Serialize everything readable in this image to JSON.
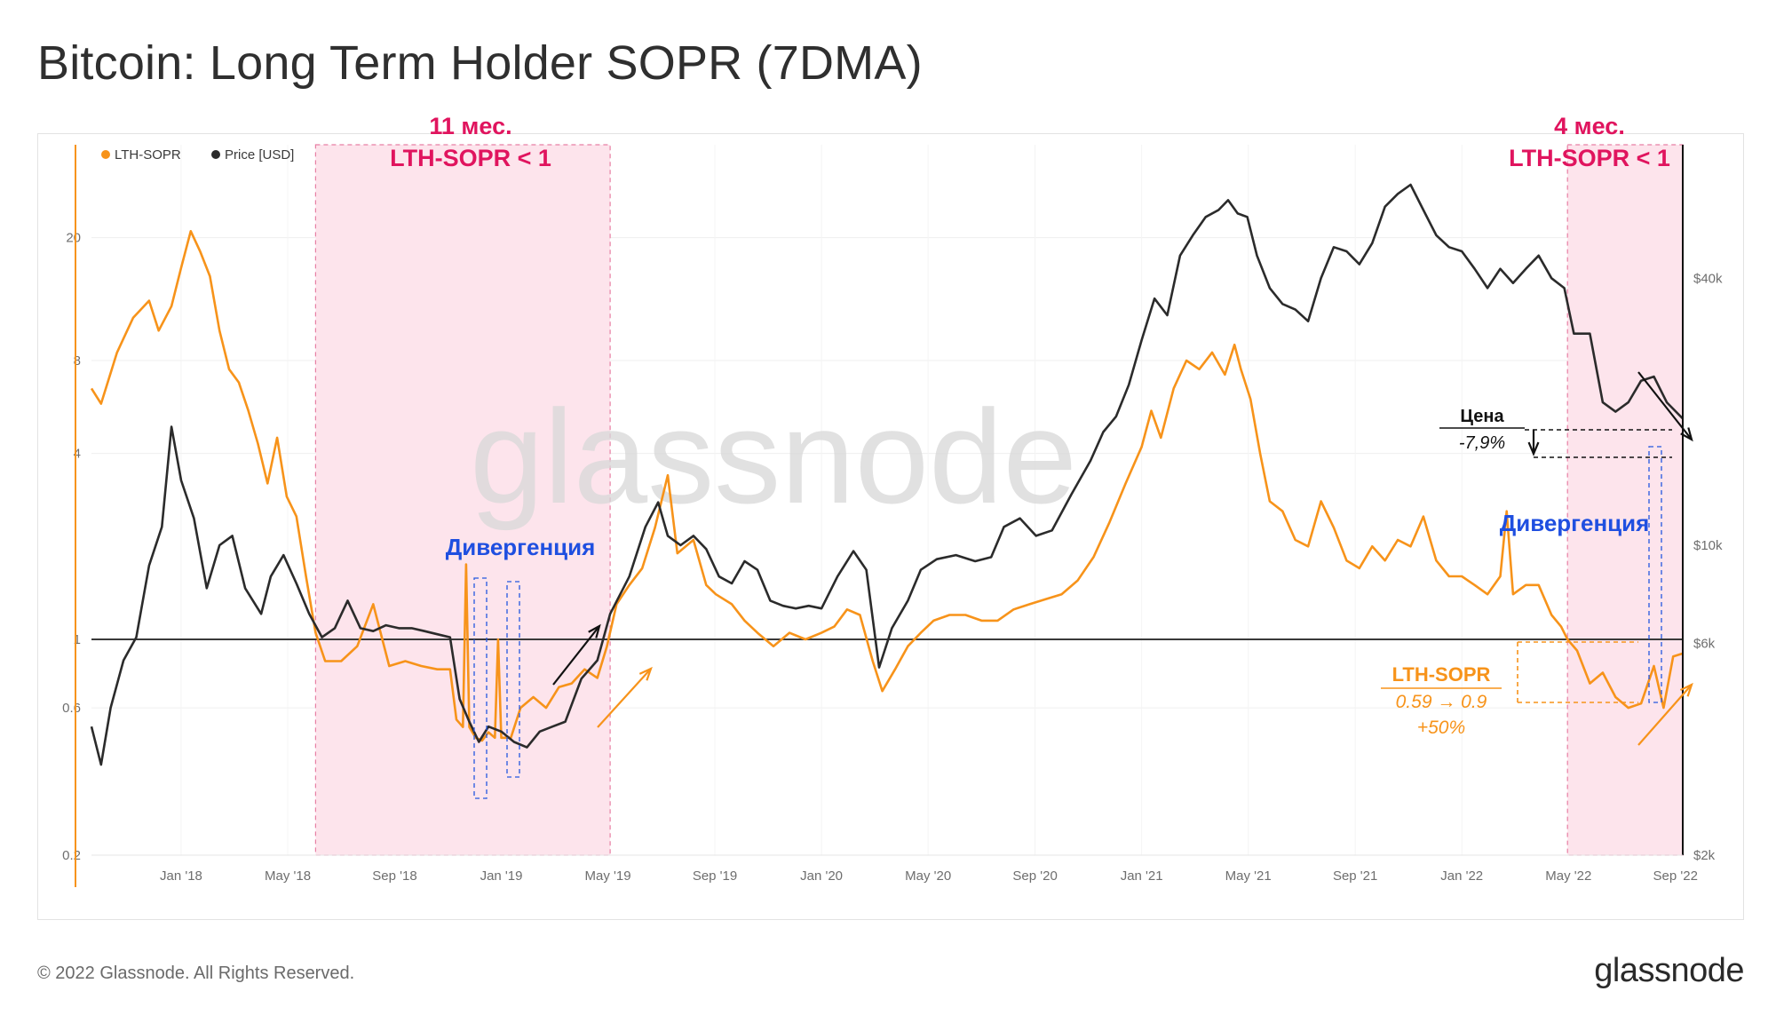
{
  "title": "Bitcoin: Long Term Holder SOPR (7DMA)",
  "footer": {
    "copyright": "© 2022 Glassnode. All Rights Reserved.",
    "logo": "glassnode"
  },
  "watermark": "glassnode",
  "colors": {
    "sopr": "#f7931a",
    "price": "#2b2b2b",
    "shade": "#fde4ec",
    "shade_border": "#e77fa4",
    "red_text": "#e0145e",
    "blue_text": "#1f4fe0",
    "ref_line": "#3a3a3a"
  },
  "annotations": {
    "period1_top": "11 мес.",
    "period1_bottom": "LTH-SOPR < 1",
    "period2_top": "4 мес.",
    "period2_bottom": "LTH-SOPR < 1",
    "divergence1": "Дивергенция",
    "divergence2": "Дивергенция",
    "price_label": "Цена",
    "price_change": "-7,9%",
    "sopr_label": "LTH-SOPR",
    "sopr_change": "0.59 → 0.9",
    "sopr_pct": "+50%"
  },
  "chart_data": {
    "type": "line",
    "title": "Bitcoin: Long Term Holder SOPR (7DMA)",
    "legend": [
      "LTH-SOPR",
      "Price [USD]"
    ],
    "legend_position": "top-left",
    "x_range": [
      "2017-09-20",
      "2022-09-30"
    ],
    "x_ticks": [
      "Jan '18",
      "May '18",
      "Sep '18",
      "Jan '19",
      "May '19",
      "Sep '19",
      "Jan '20",
      "May '20",
      "Sep '20",
      "Jan '21",
      "May '21",
      "Sep '21",
      "Jan '22",
      "May '22",
      "Sep '22"
    ],
    "x_tick_dates": [
      2018.0,
      2018.333,
      2018.667,
      2019.0,
      2019.333,
      2019.667,
      2020.0,
      2020.333,
      2020.667,
      2021.0,
      2021.333,
      2021.667,
      2022.0,
      2022.333,
      2022.667
    ],
    "y_left": {
      "scale": "log",
      "range": [
        0.2,
        40
      ],
      "ticks": [
        0.2,
        0.6,
        1,
        4,
        8,
        20
      ],
      "tick_labels": [
        "0.2",
        "0.6",
        "1",
        "4",
        "8",
        "20"
      ]
    },
    "y_right": {
      "scale": "log",
      "range": [
        2000,
        80000
      ],
      "ticks": [
        2000,
        6000,
        10000,
        40000
      ],
      "tick_labels": [
        "$2k",
        "$6k",
        "$10k",
        "$40k"
      ]
    },
    "reference_line": 1,
    "shaded_periods": [
      {
        "start": 2018.42,
        "end": 2019.34
      },
      {
        "start": 2022.33,
        "end": 2022.69
      }
    ],
    "series": [
      {
        "name": "LTH-SOPR",
        "axis": "left",
        "points": [
          [
            2017.72,
            6.5
          ],
          [
            2017.75,
            5.8
          ],
          [
            2017.8,
            8.5
          ],
          [
            2017.85,
            11
          ],
          [
            2017.9,
            12.5
          ],
          [
            2017.93,
            10
          ],
          [
            2017.97,
            12
          ],
          [
            2018.0,
            16
          ],
          [
            2018.03,
            21
          ],
          [
            2018.06,
            18
          ],
          [
            2018.09,
            15
          ],
          [
            2018.12,
            10
          ],
          [
            2018.15,
            7.5
          ],
          [
            2018.18,
            6.8
          ],
          [
            2018.21,
            5.5
          ],
          [
            2018.24,
            4.3
          ],
          [
            2018.27,
            3.2
          ],
          [
            2018.3,
            4.5
          ],
          [
            2018.33,
            2.9
          ],
          [
            2018.36,
            2.5
          ],
          [
            2018.39,
            1.6
          ],
          [
            2018.42,
            1.05
          ],
          [
            2018.45,
            0.85
          ],
          [
            2018.5,
            0.85
          ],
          [
            2018.55,
            0.95
          ],
          [
            2018.6,
            1.3
          ],
          [
            2018.65,
            0.82
          ],
          [
            2018.7,
            0.85
          ],
          [
            2018.75,
            0.82
          ],
          [
            2018.8,
            0.8
          ],
          [
            2018.84,
            0.8
          ],
          [
            2018.86,
            0.55
          ],
          [
            2018.88,
            0.52
          ],
          [
            2018.89,
            1.75
          ],
          [
            2018.9,
            0.52
          ],
          [
            2018.92,
            0.48
          ],
          [
            2018.94,
            0.47
          ],
          [
            2018.96,
            0.5
          ],
          [
            2018.98,
            0.48
          ],
          [
            2018.99,
            1.0
          ],
          [
            2019.0,
            0.48
          ],
          [
            2019.03,
            0.48
          ],
          [
            2019.06,
            0.6
          ],
          [
            2019.1,
            0.65
          ],
          [
            2019.14,
            0.6
          ],
          [
            2019.18,
            0.7
          ],
          [
            2019.22,
            0.72
          ],
          [
            2019.26,
            0.8
          ],
          [
            2019.3,
            0.75
          ],
          [
            2019.33,
            0.95
          ],
          [
            2019.36,
            1.3
          ],
          [
            2019.4,
            1.5
          ],
          [
            2019.44,
            1.7
          ],
          [
            2019.48,
            2.3
          ],
          [
            2019.52,
            3.4
          ],
          [
            2019.55,
            1.9
          ],
          [
            2019.6,
            2.1
          ],
          [
            2019.64,
            1.5
          ],
          [
            2019.67,
            1.4
          ],
          [
            2019.72,
            1.3
          ],
          [
            2019.76,
            1.15
          ],
          [
            2019.8,
            1.05
          ],
          [
            2019.85,
            0.95
          ],
          [
            2019.9,
            1.05
          ],
          [
            2019.95,
            1.0
          ],
          [
            2020.0,
            1.05
          ],
          [
            2020.04,
            1.1
          ],
          [
            2020.08,
            1.25
          ],
          [
            2020.12,
            1.2
          ],
          [
            2020.16,
            0.85
          ],
          [
            2020.19,
            0.68
          ],
          [
            2020.23,
            0.8
          ],
          [
            2020.27,
            0.95
          ],
          [
            2020.31,
            1.05
          ],
          [
            2020.35,
            1.15
          ],
          [
            2020.4,
            1.2
          ],
          [
            2020.45,
            1.2
          ],
          [
            2020.5,
            1.15
          ],
          [
            2020.55,
            1.15
          ],
          [
            2020.6,
            1.25
          ],
          [
            2020.65,
            1.3
          ],
          [
            2020.7,
            1.35
          ],
          [
            2020.75,
            1.4
          ],
          [
            2020.8,
            1.55
          ],
          [
            2020.85,
            1.85
          ],
          [
            2020.9,
            2.4
          ],
          [
            2020.95,
            3.2
          ],
          [
            2021.0,
            4.2
          ],
          [
            2021.03,
            5.5
          ],
          [
            2021.06,
            4.5
          ],
          [
            2021.1,
            6.5
          ],
          [
            2021.14,
            8.0
          ],
          [
            2021.18,
            7.5
          ],
          [
            2021.22,
            8.5
          ],
          [
            2021.26,
            7.2
          ],
          [
            2021.29,
            9.0
          ],
          [
            2021.31,
            7.5
          ],
          [
            2021.34,
            6.0
          ],
          [
            2021.37,
            4.0
          ],
          [
            2021.4,
            2.8
          ],
          [
            2021.44,
            2.6
          ],
          [
            2021.48,
            2.1
          ],
          [
            2021.52,
            2.0
          ],
          [
            2021.56,
            2.8
          ],
          [
            2021.6,
            2.3
          ],
          [
            2021.64,
            1.8
          ],
          [
            2021.68,
            1.7
          ],
          [
            2021.72,
            2.0
          ],
          [
            2021.76,
            1.8
          ],
          [
            2021.8,
            2.1
          ],
          [
            2021.84,
            2.0
          ],
          [
            2021.88,
            2.5
          ],
          [
            2021.92,
            1.8
          ],
          [
            2021.96,
            1.6
          ],
          [
            2022.0,
            1.6
          ],
          [
            2022.04,
            1.5
          ],
          [
            2022.08,
            1.4
          ],
          [
            2022.12,
            1.6
          ],
          [
            2022.14,
            2.6
          ],
          [
            2022.16,
            1.4
          ],
          [
            2022.2,
            1.5
          ],
          [
            2022.24,
            1.5
          ],
          [
            2022.28,
            1.2
          ],
          [
            2022.31,
            1.1
          ],
          [
            2022.33,
            1.0
          ],
          [
            2022.36,
            0.92
          ],
          [
            2022.4,
            0.72
          ],
          [
            2022.44,
            0.78
          ],
          [
            2022.48,
            0.65
          ],
          [
            2022.52,
            0.6
          ],
          [
            2022.56,
            0.62
          ],
          [
            2022.6,
            0.82
          ],
          [
            2022.63,
            0.6
          ],
          [
            2022.66,
            0.88
          ],
          [
            2022.69,
            0.9
          ]
        ]
      },
      {
        "name": "Price [USD]",
        "axis": "right",
        "points": [
          [
            2017.72,
            3900
          ],
          [
            2017.75,
            3200
          ],
          [
            2017.78,
            4300
          ],
          [
            2017.82,
            5500
          ],
          [
            2017.86,
            6200
          ],
          [
            2017.9,
            9000
          ],
          [
            2017.94,
            11000
          ],
          [
            2017.97,
            18500
          ],
          [
            2018.0,
            14000
          ],
          [
            2018.04,
            11500
          ],
          [
            2018.08,
            8000
          ],
          [
            2018.12,
            10000
          ],
          [
            2018.16,
            10500
          ],
          [
            2018.2,
            8000
          ],
          [
            2018.25,
            7000
          ],
          [
            2018.28,
            8500
          ],
          [
            2018.32,
            9500
          ],
          [
            2018.36,
            8200
          ],
          [
            2018.4,
            7000
          ],
          [
            2018.44,
            6200
          ],
          [
            2018.48,
            6500
          ],
          [
            2018.52,
            7500
          ],
          [
            2018.56,
            6500
          ],
          [
            2018.6,
            6400
          ],
          [
            2018.64,
            6600
          ],
          [
            2018.68,
            6500
          ],
          [
            2018.72,
            6500
          ],
          [
            2018.76,
            6400
          ],
          [
            2018.8,
            6300
          ],
          [
            2018.84,
            6200
          ],
          [
            2018.87,
            4500
          ],
          [
            2018.9,
            4000
          ],
          [
            2018.93,
            3600
          ],
          [
            2018.96,
            3900
          ],
          [
            2019.0,
            3800
          ],
          [
            2019.04,
            3600
          ],
          [
            2019.08,
            3500
          ],
          [
            2019.12,
            3800
          ],
          [
            2019.16,
            3900
          ],
          [
            2019.2,
            4000
          ],
          [
            2019.25,
            5000
          ],
          [
            2019.3,
            5500
          ],
          [
            2019.34,
            7000
          ],
          [
            2019.4,
            8500
          ],
          [
            2019.45,
            11000
          ],
          [
            2019.49,
            12500
          ],
          [
            2019.52,
            10500
          ],
          [
            2019.56,
            10000
          ],
          [
            2019.6,
            10500
          ],
          [
            2019.64,
            9800
          ],
          [
            2019.68,
            8500
          ],
          [
            2019.72,
            8200
          ],
          [
            2019.76,
            9200
          ],
          [
            2019.8,
            8800
          ],
          [
            2019.84,
            7500
          ],
          [
            2019.88,
            7300
          ],
          [
            2019.92,
            7200
          ],
          [
            2019.96,
            7300
          ],
          [
            2020.0,
            7200
          ],
          [
            2020.05,
            8500
          ],
          [
            2020.1,
            9700
          ],
          [
            2020.14,
            8800
          ],
          [
            2020.18,
            5300
          ],
          [
            2020.22,
            6500
          ],
          [
            2020.27,
            7500
          ],
          [
            2020.31,
            8800
          ],
          [
            2020.36,
            9300
          ],
          [
            2020.42,
            9500
          ],
          [
            2020.48,
            9200
          ],
          [
            2020.53,
            9400
          ],
          [
            2020.57,
            11000
          ],
          [
            2020.62,
            11500
          ],
          [
            2020.67,
            10500
          ],
          [
            2020.72,
            10800
          ],
          [
            2020.78,
            13000
          ],
          [
            2020.84,
            15500
          ],
          [
            2020.88,
            18000
          ],
          [
            2020.92,
            19500
          ],
          [
            2020.96,
            23000
          ],
          [
            2021.0,
            29000
          ],
          [
            2021.04,
            36000
          ],
          [
            2021.08,
            33000
          ],
          [
            2021.12,
            45000
          ],
          [
            2021.16,
            50000
          ],
          [
            2021.2,
            55000
          ],
          [
            2021.24,
            57000
          ],
          [
            2021.27,
            60000
          ],
          [
            2021.3,
            56000
          ],
          [
            2021.33,
            55000
          ],
          [
            2021.36,
            45000
          ],
          [
            2021.4,
            38000
          ],
          [
            2021.44,
            35000
          ],
          [
            2021.48,
            34000
          ],
          [
            2021.52,
            32000
          ],
          [
            2021.56,
            40000
          ],
          [
            2021.6,
            47000
          ],
          [
            2021.64,
            46000
          ],
          [
            2021.68,
            43000
          ],
          [
            2021.72,
            48000
          ],
          [
            2021.76,
            58000
          ],
          [
            2021.8,
            62000
          ],
          [
            2021.84,
            65000
          ],
          [
            2021.88,
            57000
          ],
          [
            2021.92,
            50000
          ],
          [
            2021.96,
            47000
          ],
          [
            2022.0,
            46000
          ],
          [
            2022.04,
            42000
          ],
          [
            2022.08,
            38000
          ],
          [
            2022.12,
            42000
          ],
          [
            2022.16,
            39000
          ],
          [
            2022.2,
            42000
          ],
          [
            2022.24,
            45000
          ],
          [
            2022.28,
            40000
          ],
          [
            2022.32,
            38000
          ],
          [
            2022.35,
            30000
          ],
          [
            2022.4,
            30000
          ],
          [
            2022.44,
            21000
          ],
          [
            2022.48,
            20000
          ],
          [
            2022.52,
            21000
          ],
          [
            2022.56,
            23500
          ],
          [
            2022.6,
            24000
          ],
          [
            2022.64,
            21000
          ],
          [
            2022.69,
            19300
          ]
        ]
      }
    ]
  }
}
